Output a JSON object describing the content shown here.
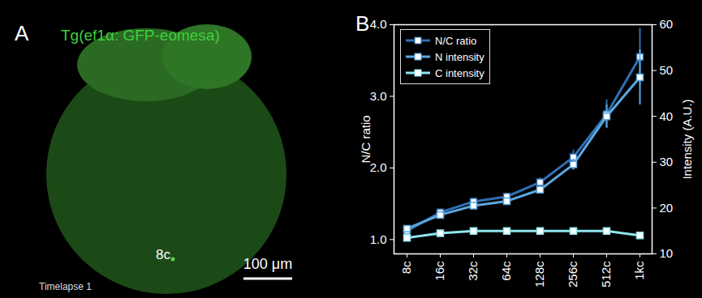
{
  "panel_a": {
    "label": "A",
    "title": "Tg(ef1α: GFP-eomesa)",
    "annotation": "8c",
    "scale_bar": "100 μm",
    "caption": "Timelapse 1"
  },
  "chart_data": {
    "type": "line",
    "annotations": [
      "B"
    ],
    "y_label": "N/C ratio",
    "y2_label": "Intensity (A.U.)",
    "categories": [
      "8c",
      "16c",
      "32c",
      "64c",
      "128c",
      "256c",
      "512c",
      "1kc"
    ],
    "ylim": [
      0.8,
      4
    ],
    "yticks": [
      1,
      2,
      3,
      4
    ],
    "y2lim": [
      10,
      60
    ],
    "y2ticks": [
      10,
      20,
      30,
      40,
      50,
      60
    ],
    "legend": "upper left",
    "marker": "square",
    "line_style": "solid",
    "series": [
      {
        "name": "N/C ratio",
        "color": "#2f6fb3",
        "values": [
          1.12,
          1.38,
          1.53,
          1.6,
          1.8,
          2.15,
          2.75,
          3.55
        ],
        "errors": [
          0.05,
          0.05,
          0.05,
          0.05,
          0.06,
          0.1,
          0.2,
          0.4
        ]
      },
      {
        "name": "N intensity",
        "color": "#5aa8e0",
        "axis": "y2",
        "values": [
          15.5,
          18.5,
          20.5,
          21.5,
          24,
          29.5,
          40,
          48.5
        ],
        "errors": [
          0.5,
          0.7,
          0.7,
          0.7,
          0.8,
          1.2,
          2.5,
          6
        ]
      },
      {
        "name": "C intensity",
        "color": "#8fe6ee",
        "axis": "y2",
        "values": [
          13.5,
          14.5,
          15,
          15,
          15,
          15,
          15,
          14
        ],
        "errors": [
          0.3,
          0.3,
          0.3,
          0.3,
          0.3,
          0.3,
          0.3,
          0.3
        ]
      }
    ]
  }
}
